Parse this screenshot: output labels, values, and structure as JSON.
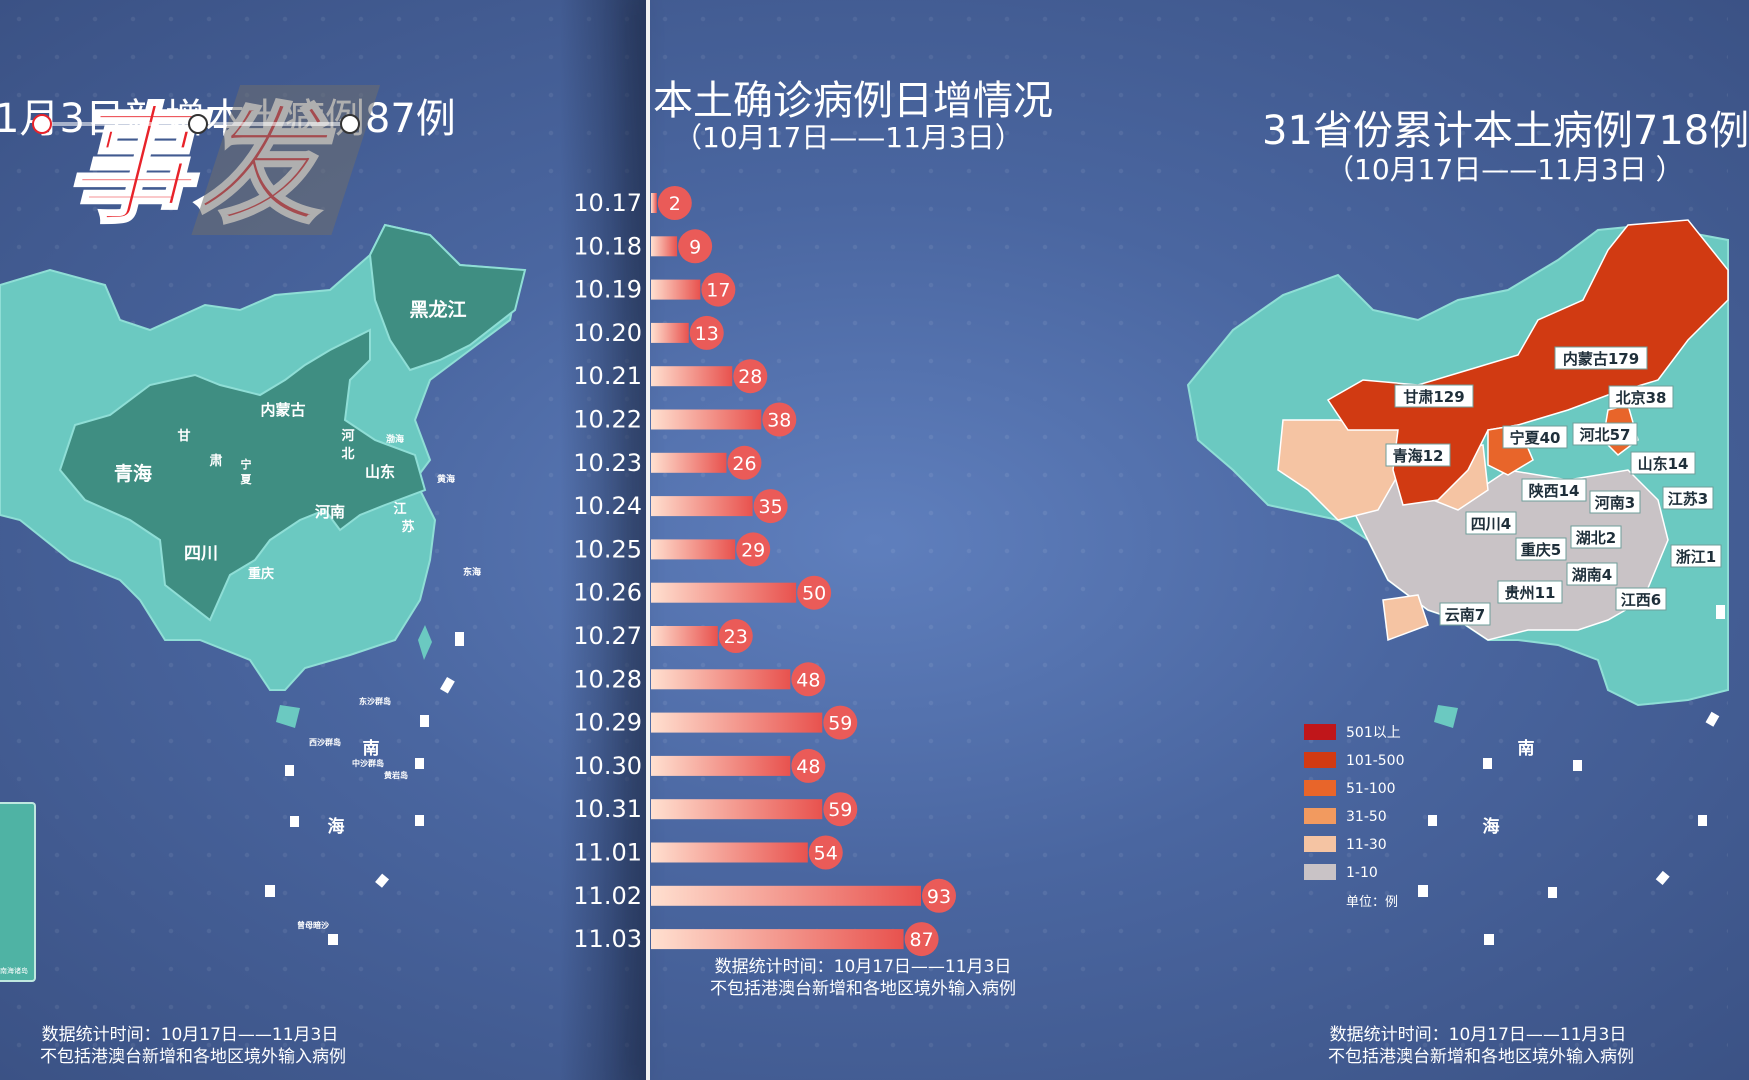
{
  "logo": {
    "text": "事发"
  },
  "left": {
    "title": "1月3日新增本土病例87例",
    "map_labels": [
      "黑龙江",
      "内蒙古",
      "甘",
      "肃",
      "宁",
      "夏",
      "河",
      "北",
      "青海",
      "山东",
      "河南",
      "江",
      "苏",
      "四川",
      "重庆",
      "渤海",
      "黄海",
      "东海",
      "南",
      "海",
      "东沙群岛",
      "西沙群岛",
      "中沙群岛",
      "黄岩岛",
      "曾母暗沙",
      "南海诸岛"
    ],
    "footnote_time": "数据统计时间：10月17日——11月3日",
    "footnote_note": "不包括港澳台新增和各地区境外输入病例"
  },
  "middle": {
    "title": "本土确诊病例日增情况",
    "subtitle": "（10月17日——11月3日）",
    "footnote_time": "数据统计时间：10月17日——11月3日",
    "footnote_note": "不包括港澳台新增和各地区境外输入病例"
  },
  "right": {
    "title": "31省份累计本土病例718例",
    "subtitle": "（10月17日——11月3日 ）",
    "map_labels": [
      "内蒙古179",
      "甘肃129",
      "北京38",
      "宁夏40",
      "河北57",
      "青海12",
      "山东14",
      "陕西14",
      "河南3",
      "江苏3",
      "四川4",
      "湖北2",
      "重庆5",
      "浙江1",
      "湖南4",
      "贵州11",
      "江西6",
      "云南7",
      "南",
      "海"
    ],
    "legend": [
      {
        "label": "501以上",
        "color": "#c0161a"
      },
      {
        "label": "101-500",
        "color": "#d13a12"
      },
      {
        "label": "51-100",
        "color": "#e8652a"
      },
      {
        "label": "31-50",
        "color": "#f29a5f"
      },
      {
        "label": "11-30",
        "color": "#f5c4a3"
      },
      {
        "label": "1-10",
        "color": "#c9c3c6"
      }
    ],
    "unit": "单位：例",
    "footnote_time": "数据统计时间：10月17日——11月3日",
    "footnote_note": "不包括港澳台新增和各地区境外输入病例"
  },
  "chart_data": {
    "type": "bar",
    "orientation": "horizontal",
    "title": "本土确诊病例日增情况",
    "subtitle": "（10月17日——11月3日）",
    "categories": [
      "10.17",
      "10.18",
      "10.19",
      "10.20",
      "10.21",
      "10.22",
      "10.23",
      "10.24",
      "10.25",
      "10.26",
      "10.27",
      "10.28",
      "10.29",
      "10.30",
      "10.31",
      "11.01",
      "11.02",
      "11.03"
    ],
    "values": [
      2,
      9,
      17,
      13,
      28,
      38,
      26,
      35,
      29,
      50,
      23,
      48,
      59,
      48,
      59,
      54,
      93,
      87
    ],
    "xlim": [
      0,
      100
    ],
    "grid": false,
    "colors": {
      "bar_start": "#ffd9c8",
      "bar_end": "#e8524e",
      "label_bubble": "#ea5b58"
    }
  }
}
